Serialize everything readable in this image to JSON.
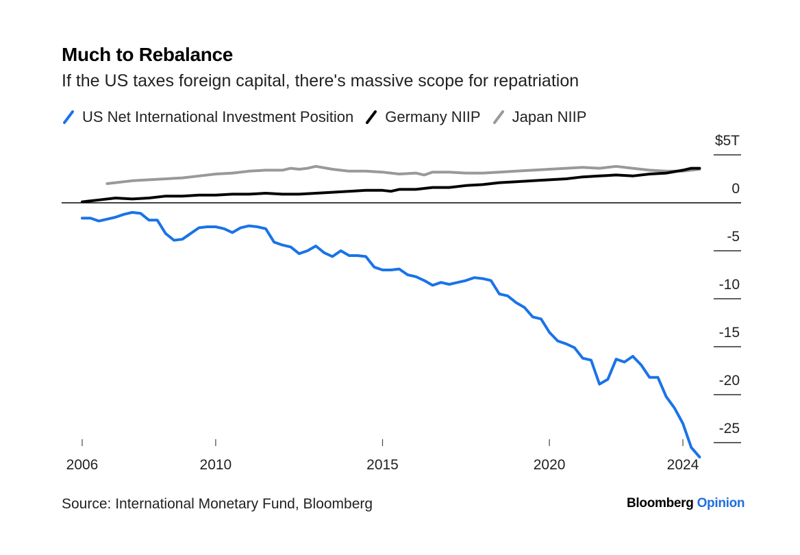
{
  "header": {
    "title": "Much to Rebalance",
    "subtitle": "If the US taxes foreign capital, there's massive scope for repatriation"
  },
  "legend": [
    {
      "label": "US Net International Investment Position",
      "color": "#1a73e8"
    },
    {
      "label": "Germany NIIP",
      "color": "#000000"
    },
    {
      "label": "Japan NIIP",
      "color": "#999999"
    }
  ],
  "footer": {
    "source": "Source: International Monetary Fund, Bloomberg",
    "brand_main": "Bloomberg",
    "brand_accent": "Opinion"
  },
  "chart_data": {
    "type": "line",
    "xlim": [
      2006,
      2024
    ],
    "ylim": [
      -26.5,
      5
    ],
    "x_ticks": [
      2006,
      2010,
      2015,
      2020,
      2024
    ],
    "y_ticks": [
      {
        "value": 5,
        "label": "$5T"
      },
      {
        "value": 0,
        "label": "0"
      },
      {
        "value": -5,
        "label": "-5"
      },
      {
        "value": -10,
        "label": "-10"
      },
      {
        "value": -15,
        "label": "-15"
      },
      {
        "value": -20,
        "label": "-20"
      },
      {
        "value": -25,
        "label": "-25"
      }
    ],
    "grid": false,
    "legend_position": "top-left",
    "series": [
      {
        "name": "US Net International Investment Position",
        "color": "#1a73e8",
        "points": [
          [
            2006.0,
            -1.6
          ],
          [
            2006.25,
            -1.6
          ],
          [
            2006.5,
            -1.9
          ],
          [
            2006.75,
            -1.7
          ],
          [
            2007.0,
            -1.5
          ],
          [
            2007.25,
            -1.2
          ],
          [
            2007.5,
            -1.0
          ],
          [
            2007.75,
            -1.1
          ],
          [
            2008.0,
            -1.8
          ],
          [
            2008.25,
            -1.8
          ],
          [
            2008.5,
            -3.2
          ],
          [
            2008.75,
            -3.9
          ],
          [
            2009.0,
            -3.8
          ],
          [
            2009.25,
            -3.2
          ],
          [
            2009.5,
            -2.6
          ],
          [
            2009.75,
            -2.5
          ],
          [
            2010.0,
            -2.5
          ],
          [
            2010.25,
            -2.7
          ],
          [
            2010.5,
            -3.1
          ],
          [
            2010.75,
            -2.6
          ],
          [
            2011.0,
            -2.4
          ],
          [
            2011.25,
            -2.5
          ],
          [
            2011.5,
            -2.7
          ],
          [
            2011.75,
            -4.1
          ],
          [
            2012.0,
            -4.4
          ],
          [
            2012.25,
            -4.6
          ],
          [
            2012.5,
            -5.3
          ],
          [
            2012.75,
            -5.0
          ],
          [
            2013.0,
            -4.5
          ],
          [
            2013.25,
            -5.2
          ],
          [
            2013.5,
            -5.6
          ],
          [
            2013.75,
            -5.0
          ],
          [
            2014.0,
            -5.5
          ],
          [
            2014.25,
            -5.5
          ],
          [
            2014.5,
            -5.6
          ],
          [
            2014.75,
            -6.7
          ],
          [
            2015.0,
            -7.0
          ],
          [
            2015.25,
            -7.0
          ],
          [
            2015.5,
            -6.9
          ],
          [
            2015.75,
            -7.5
          ],
          [
            2016.0,
            -7.7
          ],
          [
            2016.25,
            -8.1
          ],
          [
            2016.5,
            -8.6
          ],
          [
            2016.75,
            -8.3
          ],
          [
            2017.0,
            -8.5
          ],
          [
            2017.25,
            -8.3
          ],
          [
            2017.5,
            -8.1
          ],
          [
            2017.75,
            -7.8
          ],
          [
            2018.0,
            -7.9
          ],
          [
            2018.25,
            -8.1
          ],
          [
            2018.5,
            -9.5
          ],
          [
            2018.75,
            -9.7
          ],
          [
            2019.0,
            -10.4
          ],
          [
            2019.25,
            -10.9
          ],
          [
            2019.5,
            -11.9
          ],
          [
            2019.75,
            -12.1
          ],
          [
            2020.0,
            -13.5
          ],
          [
            2020.25,
            -14.4
          ],
          [
            2020.5,
            -14.7
          ],
          [
            2020.75,
            -15.1
          ],
          [
            2021.0,
            -16.2
          ],
          [
            2021.25,
            -16.4
          ],
          [
            2021.5,
            -18.9
          ],
          [
            2021.75,
            -18.4
          ],
          [
            2022.0,
            -16.3
          ],
          [
            2022.25,
            -16.6
          ],
          [
            2022.5,
            -16.0
          ],
          [
            2022.75,
            -16.9
          ],
          [
            2023.0,
            -18.2
          ],
          [
            2023.25,
            -18.2
          ],
          [
            2023.5,
            -20.2
          ],
          [
            2023.75,
            -21.4
          ],
          [
            2024.0,
            -23.0
          ],
          [
            2024.25,
            -25.5
          ],
          [
            2024.5,
            -26.5
          ]
        ]
      },
      {
        "name": "Germany NIIP",
        "color": "#000000",
        "points": [
          [
            2006.0,
            0.1
          ],
          [
            2006.5,
            0.3
          ],
          [
            2007.0,
            0.5
          ],
          [
            2007.5,
            0.4
          ],
          [
            2008.0,
            0.5
          ],
          [
            2008.5,
            0.7
          ],
          [
            2009.0,
            0.7
          ],
          [
            2009.5,
            0.8
          ],
          [
            2010.0,
            0.8
          ],
          [
            2010.5,
            0.9
          ],
          [
            2011.0,
            0.9
          ],
          [
            2011.5,
            1.0
          ],
          [
            2012.0,
            0.9
          ],
          [
            2012.5,
            0.9
          ],
          [
            2013.0,
            1.0
          ],
          [
            2013.5,
            1.1
          ],
          [
            2014.0,
            1.2
          ],
          [
            2014.5,
            1.3
          ],
          [
            2015.0,
            1.3
          ],
          [
            2015.25,
            1.2
          ],
          [
            2015.5,
            1.4
          ],
          [
            2016.0,
            1.4
          ],
          [
            2016.5,
            1.6
          ],
          [
            2017.0,
            1.6
          ],
          [
            2017.5,
            1.8
          ],
          [
            2018.0,
            1.9
          ],
          [
            2018.5,
            2.1
          ],
          [
            2019.0,
            2.2
          ],
          [
            2019.5,
            2.3
          ],
          [
            2020.0,
            2.4
          ],
          [
            2020.5,
            2.5
          ],
          [
            2021.0,
            2.7
          ],
          [
            2021.5,
            2.8
          ],
          [
            2022.0,
            2.9
          ],
          [
            2022.5,
            2.8
          ],
          [
            2023.0,
            3.0
          ],
          [
            2023.5,
            3.1
          ],
          [
            2024.0,
            3.4
          ],
          [
            2024.25,
            3.6
          ],
          [
            2024.5,
            3.6
          ]
        ]
      },
      {
        "name": "Japan NIIP",
        "color": "#999999",
        "points": [
          [
            2006.75,
            2.0
          ],
          [
            2007.5,
            2.3
          ],
          [
            2008.0,
            2.4
          ],
          [
            2008.5,
            2.5
          ],
          [
            2009.0,
            2.6
          ],
          [
            2009.5,
            2.8
          ],
          [
            2010.0,
            3.0
          ],
          [
            2010.5,
            3.1
          ],
          [
            2011.0,
            3.3
          ],
          [
            2011.5,
            3.4
          ],
          [
            2012.0,
            3.4
          ],
          [
            2012.25,
            3.6
          ],
          [
            2012.5,
            3.5
          ],
          [
            2012.75,
            3.6
          ],
          [
            2013.0,
            3.8
          ],
          [
            2013.5,
            3.5
          ],
          [
            2014.0,
            3.3
          ],
          [
            2014.5,
            3.3
          ],
          [
            2015.0,
            3.2
          ],
          [
            2015.5,
            3.0
          ],
          [
            2016.0,
            3.1
          ],
          [
            2016.25,
            2.9
          ],
          [
            2016.5,
            3.2
          ],
          [
            2017.0,
            3.2
          ],
          [
            2017.5,
            3.1
          ],
          [
            2018.0,
            3.1
          ],
          [
            2018.5,
            3.2
          ],
          [
            2019.0,
            3.3
          ],
          [
            2019.5,
            3.4
          ],
          [
            2020.0,
            3.5
          ],
          [
            2020.5,
            3.6
          ],
          [
            2021.0,
            3.7
          ],
          [
            2021.5,
            3.6
          ],
          [
            2022.0,
            3.8
          ],
          [
            2022.5,
            3.6
          ],
          [
            2023.0,
            3.4
          ],
          [
            2023.5,
            3.3
          ],
          [
            2024.0,
            3.3
          ],
          [
            2024.25,
            3.4
          ],
          [
            2024.5,
            3.5
          ]
        ]
      }
    ]
  }
}
